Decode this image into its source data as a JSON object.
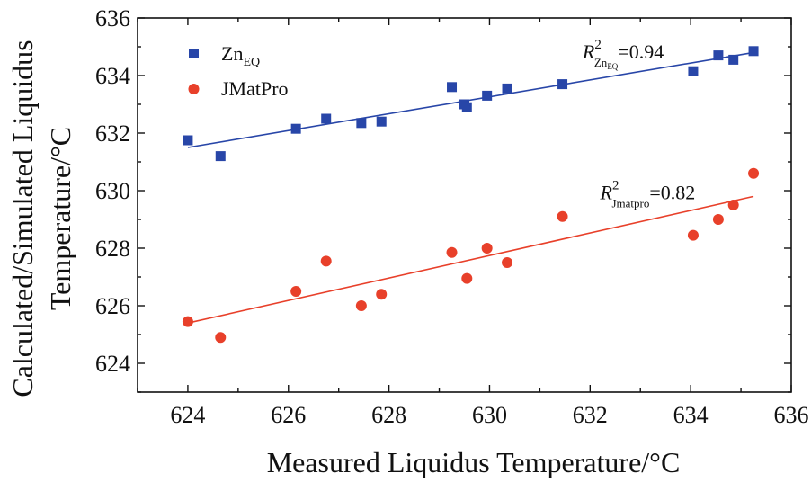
{
  "chart_data": {
    "type": "scatter",
    "xlabel": "Measured Liquidus Temperature/°C",
    "ylabel_lines": [
      "Calculated/Simulated Liquidus",
      "Temperature/°C"
    ],
    "xlim": [
      623,
      636
    ],
    "ylim": [
      623,
      636
    ],
    "xticks": [
      "624",
      "626",
      "628",
      "630",
      "632",
      "634",
      "636"
    ],
    "yticks": [
      "624",
      "626",
      "628",
      "630",
      "632",
      "634",
      "636"
    ],
    "grid": false,
    "legend_position": "top-left",
    "series": [
      {
        "name": "ZnEQ",
        "name_main": "Zn",
        "name_sub": "EQ",
        "marker": "square",
        "color": "#2846a8",
        "x": [
          624.0,
          624.65,
          626.15,
          626.75,
          627.45,
          627.85,
          629.25,
          629.5,
          629.55,
          629.95,
          630.35,
          631.45,
          634.05,
          634.55,
          634.85,
          635.25
        ],
        "y": [
          631.75,
          631.2,
          632.15,
          632.5,
          632.35,
          632.4,
          633.6,
          633.0,
          632.9,
          633.3,
          633.55,
          633.7,
          634.15,
          634.7,
          634.55,
          634.85
        ],
        "fit": {
          "x": [
            624.0,
            635.25
          ],
          "y": [
            631.5,
            634.8
          ]
        },
        "annotation": {
          "r": "R",
          "sup": "2",
          "sub": "Zn",
          "subsub": "EQ",
          "value": "=0.94",
          "x": 631.85,
          "y": 634.6
        }
      },
      {
        "name": "JMatPro",
        "marker": "circle",
        "color": "#e8402a",
        "x": [
          624.0,
          624.65,
          626.15,
          626.75,
          627.45,
          627.85,
          629.25,
          629.55,
          629.95,
          630.35,
          631.45,
          634.05,
          634.55,
          634.85,
          635.25
        ],
        "y": [
          625.45,
          624.9,
          626.5,
          627.55,
          626.0,
          626.4,
          627.85,
          626.95,
          628.0,
          627.5,
          629.1,
          628.45,
          629.0,
          629.5,
          630.6
        ],
        "fit": {
          "x": [
            624.0,
            635.25
          ],
          "y": [
            625.4,
            629.8
          ]
        },
        "annotation": {
          "r": "R",
          "sup": "2",
          "sub": "Jmatpro",
          "subsub": "",
          "value": "=0.82",
          "x": 632.2,
          "y": 629.7
        }
      }
    ]
  }
}
